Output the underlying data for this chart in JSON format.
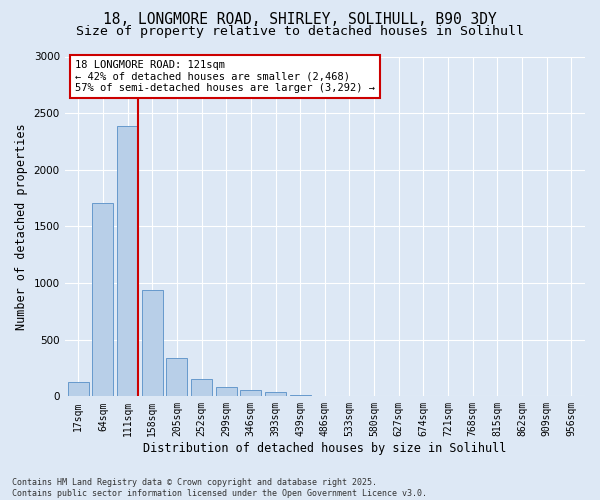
{
  "title1": "18, LONGMORE ROAD, SHIRLEY, SOLIHULL, B90 3DY",
  "title2": "Size of property relative to detached houses in Solihull",
  "xlabel": "Distribution of detached houses by size in Solihull",
  "ylabel": "Number of detached properties",
  "categories": [
    "17sqm",
    "64sqm",
    "111sqm",
    "158sqm",
    "205sqm",
    "252sqm",
    "299sqm",
    "346sqm",
    "393sqm",
    "439sqm",
    "486sqm",
    "533sqm",
    "580sqm",
    "627sqm",
    "674sqm",
    "721sqm",
    "768sqm",
    "815sqm",
    "862sqm",
    "909sqm",
    "956sqm"
  ],
  "values": [
    130,
    1710,
    2390,
    940,
    340,
    150,
    85,
    55,
    35,
    10,
    5,
    3,
    2,
    1,
    0,
    0,
    0,
    0,
    0,
    0,
    0
  ],
  "bar_color": "#b8cfe8",
  "bar_edge_color": "#6699cc",
  "vline_color": "#cc0000",
  "annotation_text": "18 LONGMORE ROAD: 121sqm\n← 42% of detached houses are smaller (2,468)\n57% of semi-detached houses are larger (3,292) →",
  "annotation_box_color": "#ffffff",
  "annotation_box_edge": "#cc0000",
  "ylim": [
    0,
    3000
  ],
  "yticks": [
    0,
    500,
    1000,
    1500,
    2000,
    2500,
    3000
  ],
  "background_color": "#dde8f5",
  "plot_bg_color": "#dde8f5",
  "footer1": "Contains HM Land Registry data © Crown copyright and database right 2025.",
  "footer2": "Contains public sector information licensed under the Open Government Licence v3.0.",
  "grid_color": "#ffffff",
  "title_fontsize": 10.5,
  "subtitle_fontsize": 9.5,
  "tick_fontsize": 7,
  "label_fontsize": 8.5,
  "annotation_fontsize": 7.5,
  "footer_fontsize": 6
}
